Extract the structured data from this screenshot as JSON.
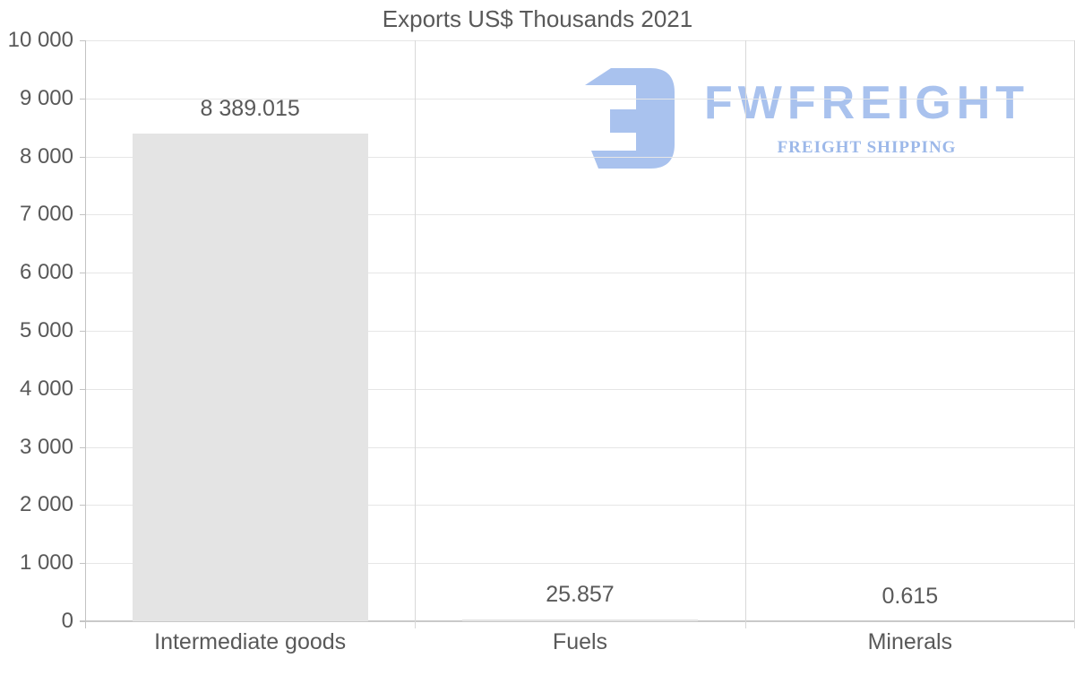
{
  "chart_data": {
    "type": "bar",
    "title": "Exports US$ Thousands 2021",
    "categories": [
      "Intermediate goods",
      "Fuels",
      "Minerals"
    ],
    "values": [
      8389.015,
      25.857,
      0.615
    ],
    "value_labels": [
      "8 389.015",
      "25.857",
      "0.615"
    ],
    "xlabel": "",
    "ylabel": "",
    "ylim": [
      0,
      10000
    ],
    "ytick_step": 1000,
    "ytick_labels": [
      "0",
      "1 000",
      "2 000",
      "3 000",
      "4 000",
      "5 000",
      "6 000",
      "7 000",
      "8 000",
      "9 000",
      "10 000"
    ],
    "grid": true,
    "legend": "none",
    "bar_color": "#e4e4e4",
    "text_color": "#595959",
    "gridline_color": "#e6e6e6",
    "separator_color": "#d8d8d8",
    "axis_color": "#c3c3c3",
    "baseline_color": "#c9c9c9"
  },
  "watermark": {
    "brand": "FWFREIGHT",
    "tagline": "FREIGHT SHIPPING",
    "brand_color": "#a9c2ee",
    "tagline_color": "#9cb8e9",
    "icon": "fwfreight-logo-icon",
    "icon_color": "#a9c2ee"
  }
}
